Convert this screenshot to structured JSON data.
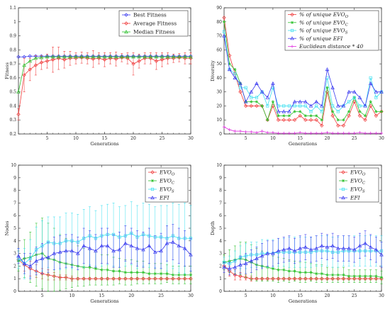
{
  "chart_data": [
    {
      "type": "line",
      "xlabel": "Generations",
      "ylabel": "Fitness",
      "xlim": [
        0,
        30
      ],
      "ylim": [
        0.2,
        1.1
      ],
      "xticks": [
        5,
        10,
        15,
        20,
        25,
        30
      ],
      "yticks": [
        0.2,
        0.3,
        0.4,
        0.5,
        0.6,
        0.7,
        0.8,
        0.9,
        1,
        1.1
      ],
      "legend_position": "top-right",
      "legend_style": "plain",
      "x": [
        0,
        1,
        2,
        3,
        4,
        5,
        6,
        7,
        8,
        9,
        10,
        11,
        12,
        13,
        14,
        15,
        16,
        17,
        18,
        19,
        20,
        21,
        22,
        23,
        24,
        25,
        26,
        27,
        28,
        29,
        30
      ],
      "series": [
        {
          "name": "Best Fitness",
          "color": "#3a3af0",
          "marker": "diamond",
          "values": [
            0.75,
            0.75,
            0.755,
            0.755,
            0.755,
            0.755,
            0.755,
            0.755,
            0.755,
            0.755,
            0.755,
            0.755,
            0.755,
            0.755,
            0.755,
            0.755,
            0.755,
            0.755,
            0.755,
            0.755,
            0.755,
            0.755,
            0.755,
            0.755,
            0.755,
            0.755,
            0.755,
            0.755,
            0.755,
            0.755,
            0.755
          ]
        },
        {
          "name": "Average Fitness",
          "color": "#f03a3a",
          "marker": "diamond",
          "values": [
            0.34,
            0.62,
            0.66,
            0.69,
            0.71,
            0.72,
            0.73,
            0.74,
            0.73,
            0.74,
            0.74,
            0.745,
            0.74,
            0.735,
            0.74,
            0.73,
            0.74,
            0.735,
            0.745,
            0.74,
            0.7,
            0.72,
            0.74,
            0.74,
            0.72,
            0.73,
            0.74,
            0.74,
            0.745,
            0.74,
            0.74
          ],
          "error": [
            0.04,
            0.12,
            0.08,
            0.07,
            0.05,
            0.05,
            0.09,
            0.08,
            0.06,
            0.05,
            0.04,
            0.04,
            0.04,
            0.06,
            0.04,
            0.05,
            0.04,
            0.05,
            0.03,
            0.04,
            0.08,
            0.05,
            0.04,
            0.04,
            0.06,
            0.05,
            0.04,
            0.03,
            0.03,
            0.04,
            0.04
          ]
        },
        {
          "name": "Median Fitness",
          "color": "#2bc02b",
          "marker": "triangle",
          "values": [
            0.5,
            0.69,
            0.72,
            0.74,
            0.745,
            0.75,
            0.75,
            0.75,
            0.75,
            0.75,
            0.75,
            0.75,
            0.75,
            0.75,
            0.75,
            0.75,
            0.75,
            0.75,
            0.75,
            0.75,
            0.75,
            0.75,
            0.75,
            0.75,
            0.75,
            0.75,
            0.75,
            0.75,
            0.75,
            0.75,
            0.75
          ]
        }
      ]
    },
    {
      "type": "line",
      "xlabel": "Generations",
      "ylabel": "Diversity",
      "xlim": [
        1,
        30
      ],
      "ylim": [
        0,
        90
      ],
      "xticks": [
        5,
        10,
        15,
        20,
        25,
        30
      ],
      "yticks": [
        0,
        10,
        20,
        30,
        40,
        50,
        60,
        70,
        80,
        90
      ],
      "legend_position": "top-right",
      "legend_style": "italic",
      "x": [
        1,
        2,
        3,
        4,
        5,
        6,
        7,
        8,
        9,
        10,
        11,
        12,
        13,
        14,
        15,
        16,
        17,
        18,
        19,
        20,
        21,
        22,
        23,
        24,
        25,
        26,
        27,
        28,
        29,
        30
      ],
      "series": [
        {
          "name": "% of unique EVO",
          "name_sub": "O",
          "color": "#f03a3a",
          "marker": "diamond",
          "values": [
            83,
            56,
            43,
            30,
            20,
            20,
            20,
            20,
            10,
            20,
            10,
            10,
            10,
            10,
            13,
            10,
            10,
            10,
            6,
            30,
            13,
            6,
            6,
            13,
            23,
            13,
            10,
            20,
            13,
            16
          ]
        },
        {
          "name": "% of unique EVO",
          "name_sub": "C",
          "color": "#2bc02b",
          "marker": "star",
          "values": [
            80,
            50,
            46,
            36,
            23,
            23,
            23,
            20,
            10,
            23,
            13,
            13,
            13,
            16,
            16,
            13,
            13,
            13,
            10,
            33,
            16,
            10,
            10,
            16,
            26,
            16,
            13,
            23,
            16,
            16
          ]
        },
        {
          "name": "% of unique EVO",
          "name_sub": "S",
          "color": "#40e0f0",
          "marker": "square",
          "values": [
            73,
            46,
            43,
            33,
            33,
            26,
            26,
            30,
            20,
            33,
            20,
            20,
            20,
            20,
            20,
            20,
            16,
            20,
            16,
            40,
            20,
            16,
            20,
            23,
            26,
            20,
            20,
            40,
            26,
            30
          ]
        },
        {
          "name": "% of unique EFI",
          "name_sub": "",
          "color": "#3a3af0",
          "marker": "triangle",
          "values": [
            70,
            46,
            40,
            36,
            23,
            30,
            36,
            30,
            26,
            36,
            16,
            16,
            16,
            23,
            23,
            23,
            20,
            23,
            20,
            46,
            33,
            20,
            20,
            30,
            30,
            26,
            20,
            36,
            30,
            30
          ]
        },
        {
          "name": "Euclidean distance * 40",
          "name_sub": "",
          "color": "#e030e0",
          "marker": "plus",
          "values": [
            5,
            3,
            2,
            2,
            1.5,
            1.5,
            1,
            2,
            1,
            1,
            0.5,
            0.5,
            0.5,
            0.5,
            1,
            0.5,
            0.5,
            0.5,
            0.5,
            1,
            0.5,
            0.5,
            0.5,
            0.5,
            0.5,
            1,
            0.5,
            0.5,
            0.5,
            0.5
          ]
        }
      ]
    },
    {
      "type": "line",
      "xlabel": "Generations",
      "ylabel": "Nodes",
      "xlim": [
        1,
        30
      ],
      "ylim": [
        0,
        10
      ],
      "xticks": [
        5,
        10,
        15,
        20,
        25,
        30
      ],
      "yticks": [
        0,
        1,
        2,
        3,
        4,
        5,
        6,
        7,
        8,
        9,
        10
      ],
      "legend_position": "top-right",
      "legend_style": "italic",
      "x": [
        1,
        2,
        3,
        4,
        5,
        6,
        7,
        8,
        9,
        10,
        11,
        12,
        13,
        14,
        15,
        16,
        17,
        18,
        19,
        20,
        21,
        22,
        23,
        24,
        25,
        26,
        27,
        28,
        29,
        30
      ],
      "series": [
        {
          "name": "EVO",
          "name_sub": "O",
          "color": "#f03a3a",
          "marker": "diamond",
          "values": [
            2.5,
            2.1,
            1.8,
            1.6,
            1.4,
            1.3,
            1.2,
            1.1,
            1.1,
            1.0,
            1.0,
            1.0,
            1.0,
            1.0,
            1.0,
            1.0,
            1.0,
            1.0,
            1.0,
            1.0,
            1.0,
            1.0,
            1.0,
            1.0,
            1.0,
            1.0,
            1.0,
            1.0,
            1.0,
            1.0
          ],
          "error": [
            0.3,
            0.5,
            0.6,
            0.5,
            0.4,
            0.4,
            0.3,
            0.2,
            0.2,
            0.2,
            0.1,
            0.1,
            0.1,
            0.1,
            0.1,
            0.1,
            0.1,
            0.1,
            0.1,
            0.1,
            0.1,
            0.1,
            0.1,
            0.1,
            0.1,
            0.1,
            0.1,
            0.1,
            0.1,
            0.1
          ]
        },
        {
          "name": "EVO",
          "name_sub": "C",
          "color": "#2bc02b",
          "marker": "star",
          "values": [
            2.4,
            2.6,
            2.7,
            2.9,
            3.0,
            2.6,
            2.5,
            2.3,
            2.2,
            2.1,
            2.0,
            1.9,
            1.9,
            1.8,
            1.7,
            1.7,
            1.6,
            1.6,
            1.5,
            1.5,
            1.5,
            1.5,
            1.4,
            1.4,
            1.4,
            1.4,
            1.3,
            1.3,
            1.3,
            1.3
          ],
          "error": [
            0.8,
            1.5,
            2.0,
            2.5,
            2.8,
            2.8,
            2.5,
            2.2,
            2.0,
            1.8,
            1.6,
            1.5,
            1.4,
            1.3,
            1.2,
            1.2,
            1.1,
            1.0,
            1.0,
            1.0,
            0.9,
            0.9,
            0.8,
            0.8,
            0.8,
            0.7,
            0.7,
            0.7,
            0.7,
            0.7
          ]
        },
        {
          "name": "EVO",
          "name_sub": "S",
          "color": "#40e0f0",
          "marker": "square",
          "values": [
            2.6,
            2.2,
            2.6,
            3.3,
            3.6,
            3.9,
            3.8,
            3.8,
            4.0,
            4.0,
            3.9,
            4.2,
            4.4,
            4.2,
            4.4,
            4.5,
            4.5,
            4.3,
            4.4,
            4.6,
            4.3,
            4.5,
            4.4,
            4.3,
            4.3,
            4.2,
            4.4,
            4.2,
            4.2,
            4.2
          ],
          "error": [
            0.8,
            1.2,
            1.5,
            1.8,
            2.0,
            2.0,
            2.1,
            2.1,
            2.2,
            2.2,
            2.2,
            2.3,
            2.3,
            2.2,
            2.4,
            2.4,
            2.5,
            2.4,
            2.4,
            2.5,
            2.5,
            2.5,
            2.5,
            2.4,
            2.5,
            2.6,
            2.6,
            2.7,
            2.8,
            2.6
          ]
        },
        {
          "name": "EFI",
          "name_sub": "",
          "color": "#3a3af0",
          "marker": "triangle",
          "values": [
            2.8,
            2.2,
            2.0,
            2.4,
            2.6,
            2.7,
            3.0,
            3.1,
            3.2,
            3.2,
            3.0,
            3.6,
            3.4,
            3.2,
            3.6,
            3.6,
            3.2,
            3.3,
            3.8,
            3.6,
            3.4,
            3.3,
            3.6,
            3.1,
            3.2,
            3.8,
            3.9,
            3.6,
            3.4,
            2.9
          ],
          "error": [
            0.6,
            0.8,
            1.0,
            1.1,
            1.2,
            1.2,
            1.3,
            1.3,
            1.3,
            1.3,
            1.3,
            1.4,
            1.4,
            1.3,
            1.4,
            1.4,
            1.3,
            1.4,
            1.4,
            1.4,
            1.4,
            1.4,
            1.4,
            1.3,
            1.4,
            1.4,
            1.4,
            1.4,
            1.4,
            1.3
          ]
        }
      ]
    },
    {
      "type": "line",
      "xlabel": "Generations",
      "ylabel": "Depth",
      "xlim": [
        1,
        30
      ],
      "ylim": [
        0,
        10
      ],
      "xticks": [
        5,
        10,
        15,
        20,
        25,
        30
      ],
      "yticks": [
        0,
        1,
        2,
        3,
        4,
        5,
        6,
        7,
        8,
        9,
        10
      ],
      "legend_position": "top-right",
      "legend_style": "italic",
      "x": [
        1,
        2,
        3,
        4,
        5,
        6,
        7,
        8,
        9,
        10,
        11,
        12,
        13,
        14,
        15,
        16,
        17,
        18,
        19,
        20,
        21,
        22,
        23,
        24,
        25,
        26,
        27,
        28,
        29,
        30
      ],
      "series": [
        {
          "name": "EVO",
          "name_sub": "O",
          "color": "#f03a3a",
          "marker": "diamond",
          "values": [
            2.0,
            1.6,
            1.3,
            1.2,
            1.1,
            1.0,
            1.0,
            1.0,
            1.0,
            1.0,
            1.0,
            1.0,
            1.0,
            1.0,
            1.0,
            1.0,
            1.0,
            1.0,
            1.0,
            1.0,
            1.0,
            1.0,
            1.0,
            1.0,
            1.0,
            1.0,
            1.0,
            1.0,
            1.0,
            1.0
          ],
          "error": [
            0.3,
            0.4,
            0.4,
            0.3,
            0.2,
            0.2,
            0.1,
            0.1,
            0.1,
            0.1,
            0.1,
            0.1,
            0.1,
            0.1,
            0.1,
            0.1,
            0.1,
            0.1,
            0.1,
            0.1,
            0.1,
            0.1,
            0.1,
            0.1,
            0.1,
            0.1,
            0.1,
            0.1,
            0.1,
            0.1
          ]
        },
        {
          "name": "EVO",
          "name_sub": "C",
          "color": "#2bc02b",
          "marker": "star",
          "values": [
            2.3,
            2.4,
            2.5,
            2.6,
            2.5,
            2.3,
            2.1,
            2.0,
            1.9,
            1.8,
            1.7,
            1.7,
            1.6,
            1.6,
            1.5,
            1.5,
            1.5,
            1.4,
            1.4,
            1.3,
            1.3,
            1.3,
            1.3,
            1.2,
            1.2,
            1.2,
            1.2,
            1.2,
            1.2,
            1.1
          ],
          "error": [
            0.6,
            0.9,
            1.1,
            1.3,
            1.4,
            1.4,
            1.3,
            1.2,
            1.1,
            1.0,
            1.0,
            0.9,
            0.9,
            0.8,
            0.8,
            0.8,
            0.7,
            0.7,
            0.7,
            0.6,
            0.6,
            0.6,
            0.6,
            0.5,
            0.5,
            0.5,
            0.5,
            0.5,
            0.5,
            0.5
          ]
        },
        {
          "name": "EVO",
          "name_sub": "S",
          "color": "#40e0f0",
          "marker": "square",
          "values": [
            2.3,
            2.2,
            2.4,
            2.7,
            2.8,
            2.9,
            2.9,
            3.0,
            3.0,
            3.0,
            3.1,
            3.1,
            3.1,
            3.1,
            3.1,
            3.1,
            3.1,
            3.2,
            3.2,
            3.2,
            3.1,
            3.1,
            3.2,
            3.2,
            3.2,
            3.2,
            3.2,
            3.2,
            3.2,
            3.2
          ],
          "error": [
            0.4,
            0.6,
            0.8,
            0.9,
            1.0,
            1.0,
            1.0,
            1.1,
            1.1,
            1.1,
            1.1,
            1.1,
            1.2,
            1.2,
            1.2,
            1.2,
            1.2,
            1.2,
            1.2,
            1.2,
            1.2,
            1.2,
            1.2,
            1.2,
            1.2,
            1.2,
            1.2,
            1.2,
            1.2,
            1.2
          ]
        },
        {
          "name": "EFI",
          "name_sub": "",
          "color": "#3a3af0",
          "marker": "triangle",
          "values": [
            1.9,
            1.8,
            1.9,
            2.1,
            2.2,
            2.4,
            2.6,
            2.8,
            3.0,
            3.0,
            3.2,
            3.3,
            3.4,
            3.2,
            3.4,
            3.5,
            3.3,
            3.4,
            3.6,
            3.5,
            3.6,
            3.4,
            3.4,
            3.4,
            3.3,
            3.6,
            3.8,
            3.5,
            3.3,
            2.9
          ],
          "error": [
            0.4,
            0.5,
            0.6,
            0.7,
            0.8,
            0.9,
            0.9,
            1.0,
            1.0,
            1.0,
            1.0,
            1.0,
            1.0,
            1.0,
            1.0,
            1.0,
            1.0,
            1.0,
            1.0,
            1.0,
            1.0,
            1.0,
            1.0,
            1.0,
            1.0,
            1.0,
            1.0,
            1.0,
            1.0,
            1.0
          ]
        }
      ]
    }
  ]
}
